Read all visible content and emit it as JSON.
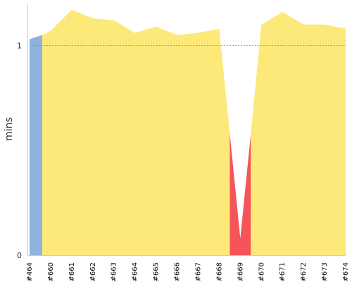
{
  "chart_data": {
    "type": "area",
    "ylabel": "mins",
    "ylim": [
      0,
      1.2
    ],
    "y_ticks": [
      0,
      1
    ],
    "reference_line": 1,
    "categories": [
      "#464",
      "#660",
      "#661",
      "#662",
      "#663",
      "#664",
      "#665",
      "#666",
      "#667",
      "#668",
      "#669",
      "#670",
      "#671",
      "#672",
      "#673",
      "#674"
    ],
    "segments": [
      {
        "color": "#8fb3dc",
        "points": [
          [
            "#464",
            1.03
          ],
          [
            0.6,
            1.05
          ]
        ]
      },
      {
        "color": "#fde97a",
        "points": [
          [
            0.6,
            1.05
          ],
          [
            "#660",
            1.07
          ],
          [
            "#661",
            1.17
          ],
          [
            "#662",
            1.13
          ],
          [
            "#663",
            1.12
          ],
          [
            "#664",
            1.06
          ],
          [
            "#665",
            1.09
          ],
          [
            "#666",
            1.05
          ],
          [
            "#667",
            1.06
          ],
          [
            "#668",
            1.08
          ],
          [
            9.5,
            0.58
          ]
        ]
      },
      {
        "color": "#f5545a",
        "points": [
          [
            9.5,
            0.58
          ],
          [
            "#669",
            0.08
          ],
          [
            10.5,
            0.58
          ]
        ]
      },
      {
        "color": "#fde97a",
        "points": [
          [
            10.5,
            0.58
          ],
          [
            "#670",
            1.1
          ],
          [
            "#671",
            1.16
          ],
          [
            "#672",
            1.1
          ],
          [
            "#673",
            1.1
          ],
          [
            "#674",
            1.08
          ]
        ]
      }
    ]
  }
}
